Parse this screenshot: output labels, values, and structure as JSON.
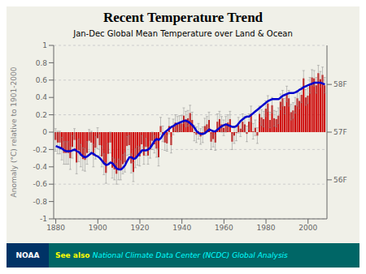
{
  "chart_data": {
    "type": "bar",
    "title": "Recent Temperature Trend",
    "subtitle": "Jan-Dec Global Mean Temperature over Land & Ocean",
    "y_label": "Anomaly (°C) relative to 1901-2000",
    "annotations": [
      "NOAA",
      "See also ",
      "National Climate Data Center (NCDC) Global Analysis"
    ],
    "x": [
      1880,
      1881,
      1882,
      1883,
      1884,
      1885,
      1886,
      1887,
      1888,
      1889,
      1890,
      1891,
      1892,
      1893,
      1894,
      1895,
      1896,
      1897,
      1898,
      1899,
      1900,
      1901,
      1902,
      1903,
      1904,
      1905,
      1906,
      1907,
      1908,
      1909,
      1910,
      1911,
      1912,
      1913,
      1914,
      1915,
      1916,
      1917,
      1918,
      1919,
      1920,
      1921,
      1922,
      1923,
      1924,
      1925,
      1926,
      1927,
      1928,
      1929,
      1930,
      1931,
      1932,
      1933,
      1934,
      1935,
      1936,
      1937,
      1938,
      1939,
      1940,
      1941,
      1942,
      1943,
      1944,
      1945,
      1946,
      1947,
      1948,
      1949,
      1950,
      1951,
      1952,
      1953,
      1954,
      1955,
      1956,
      1957,
      1958,
      1959,
      1960,
      1961,
      1962,
      1963,
      1964,
      1965,
      1966,
      1967,
      1968,
      1969,
      1970,
      1971,
      1972,
      1973,
      1974,
      1975,
      1976,
      1977,
      1978,
      1979,
      1980,
      1981,
      1982,
      1983,
      1984,
      1985,
      1986,
      1987,
      1988,
      1989,
      1990,
      1991,
      1992,
      1993,
      1994,
      1995,
      1996,
      1997,
      1998,
      1999,
      2000,
      2001,
      2002,
      2003,
      2004,
      2005,
      2006,
      2007,
      2008
    ],
    "series": [
      {
        "type": "bar",
        "color": "#cc0000",
        "values": [
          -0.09,
          -0.12,
          -0.12,
          -0.19,
          -0.24,
          -0.24,
          -0.24,
          -0.3,
          -0.17,
          -0.09,
          -0.35,
          -0.21,
          -0.27,
          -0.31,
          -0.32,
          -0.24,
          -0.1,
          -0.12,
          -0.27,
          -0.18,
          -0.07,
          -0.15,
          -0.28,
          -0.37,
          -0.47,
          -0.25,
          -0.12,
          -0.41,
          -0.43,
          -0.48,
          -0.43,
          -0.44,
          -0.37,
          -0.35,
          -0.16,
          -0.15,
          -0.36,
          -0.46,
          -0.3,
          -0.27,
          -0.28,
          -0.14,
          -0.27,
          -0.17,
          -0.27,
          -0.2,
          -0.1,
          -0.14,
          -0.19,
          -0.29,
          0.07,
          -0.02,
          -0.12,
          -0.13,
          0.07,
          -0.15,
          0.06,
          0.11,
          0.09,
          0.1,
          0.1,
          0.19,
          0.15,
          0.16,
          0.22,
          0.14,
          -0.01,
          -0.03,
          0.01,
          -0.05,
          -0.03,
          0.07,
          0.09,
          0.14,
          -0.11,
          -0.08,
          -0.12,
          0.12,
          0.15,
          0.09,
          0.05,
          0.09,
          0.11,
          0.15,
          -0.11,
          -0.04,
          -0.01,
          0.08,
          0.04,
          0.12,
          0.09,
          -0.02,
          0.12,
          0.21,
          0.01,
          0.05,
          -0.04,
          0.21,
          0.17,
          0.15,
          0.27,
          0.33,
          0.14,
          0.31,
          0.16,
          0.15,
          0.19,
          0.35,
          0.39,
          0.3,
          0.44,
          0.39,
          0.23,
          0.25,
          0.31,
          0.39,
          0.36,
          0.43,
          0.62,
          0.4,
          0.42,
          0.54,
          0.63,
          0.62,
          0.54,
          0.68,
          0.61,
          0.66,
          0.54
        ],
        "errors": [
          0.13,
          0.13,
          0.13,
          0.13,
          0.13,
          0.13,
          0.13,
          0.13,
          0.13,
          0.13,
          0.13,
          0.13,
          0.13,
          0.13,
          0.13,
          0.13,
          0.13,
          0.13,
          0.13,
          0.13,
          0.12,
          0.12,
          0.12,
          0.12,
          0.12,
          0.12,
          0.12,
          0.12,
          0.12,
          0.12,
          0.12,
          0.11,
          0.11,
          0.11,
          0.11,
          0.11,
          0.11,
          0.11,
          0.11,
          0.11,
          0.11,
          0.1,
          0.1,
          0.1,
          0.1,
          0.1,
          0.1,
          0.1,
          0.1,
          0.1,
          0.1,
          0.09,
          0.09,
          0.09,
          0.09,
          0.09,
          0.09,
          0.09,
          0.09,
          0.09,
          0.09,
          0.09,
          0.09,
          0.09,
          0.09,
          0.09,
          0.09,
          0.09,
          0.09,
          0.09,
          0.09,
          0.09,
          0.09,
          0.09,
          0.09,
          0.09,
          0.09,
          0.09,
          0.09,
          0.09,
          0.09,
          0.09,
          0.09,
          0.09,
          0.09,
          0.09,
          0.09,
          0.09,
          0.09,
          0.09,
          0.09,
          0.09,
          0.09,
          0.09,
          0.09,
          0.09,
          0.09,
          0.09,
          0.09,
          0.09,
          0.09,
          0.09,
          0.09,
          0.09,
          0.09,
          0.09,
          0.09,
          0.09,
          0.09,
          0.09,
          0.09,
          0.09,
          0.09,
          0.09,
          0.09,
          0.09,
          0.09,
          0.09,
          0.09,
          0.09,
          0.09,
          0.09,
          0.09,
          0.09,
          0.09,
          0.09,
          0.09,
          0.09,
          0.09
        ]
      },
      {
        "type": "line",
        "color": "#0000cc",
        "values": [
          -0.16,
          -0.17,
          -0.18,
          -0.19,
          -0.21,
          -0.22,
          -0.22,
          -0.22,
          -0.21,
          -0.2,
          -0.22,
          -0.23,
          -0.26,
          -0.28,
          -0.29,
          -0.28,
          -0.26,
          -0.24,
          -0.25,
          -0.27,
          -0.28,
          -0.3,
          -0.33,
          -0.36,
          -0.38,
          -0.37,
          -0.35,
          -0.36,
          -0.39,
          -0.42,
          -0.43,
          -0.43,
          -0.41,
          -0.38,
          -0.33,
          -0.29,
          -0.29,
          -0.31,
          -0.3,
          -0.27,
          -0.24,
          -0.21,
          -0.21,
          -0.21,
          -0.2,
          -0.18,
          -0.14,
          -0.1,
          -0.08,
          -0.09,
          -0.07,
          -0.03,
          0.0,
          0.02,
          0.04,
          0.06,
          0.07,
          0.09,
          0.1,
          0.11,
          0.12,
          0.13,
          0.13,
          0.12,
          0.1,
          0.08,
          0.05,
          0.01,
          -0.01,
          -0.02,
          -0.02,
          -0.01,
          0.01,
          0.03,
          0.02,
          0.01,
          0.01,
          0.03,
          0.05,
          0.07,
          0.08,
          0.09,
          0.08,
          0.07,
          0.06,
          0.06,
          0.07,
          0.1,
          0.13,
          0.15,
          0.17,
          0.18,
          0.18,
          0.2,
          0.22,
          0.24,
          0.26,
          0.28,
          0.3,
          0.32,
          0.34,
          0.36,
          0.37,
          0.38,
          0.38,
          0.38,
          0.38,
          0.4,
          0.42,
          0.43,
          0.44,
          0.45,
          0.45,
          0.45,
          0.46,
          0.47,
          0.49,
          0.5,
          0.52,
          0.53,
          0.54,
          0.55,
          0.56,
          0.57,
          0.57,
          0.57,
          0.57,
          0.56,
          0.55
        ]
      }
    ],
    "xlim": [
      1879,
      2009
    ],
    "xticks": [
      1880,
      1900,
      1920,
      1940,
      1960,
      1980,
      2000
    ],
    "ylim": [
      -1,
      1
    ],
    "yticks": [
      -1,
      -0.8,
      -0.6,
      -0.4,
      -0.2,
      0,
      0.2,
      0.4,
      0.6,
      0.8,
      1
    ],
    "y2lim": [
      -1,
      1
    ],
    "y2ticks": [
      {
        "value": 0.55,
        "label": "58F"
      },
      {
        "value": 0,
        "label": "57F"
      },
      {
        "value": -0.55,
        "label": "56F"
      }
    ],
    "grid": true
  }
}
